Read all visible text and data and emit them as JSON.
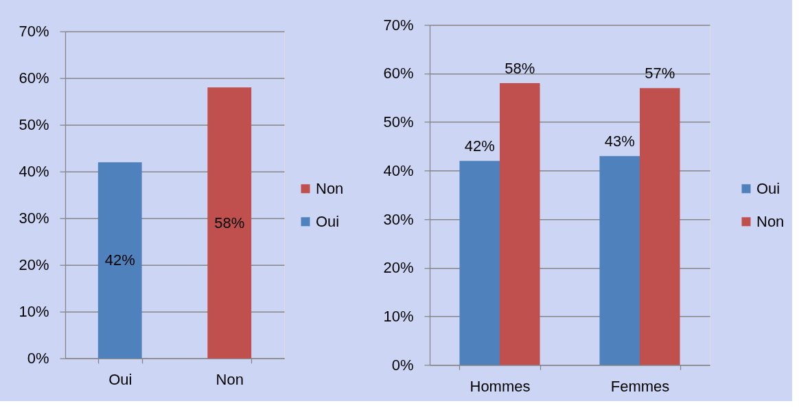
{
  "chart_data": [
    {
      "type": "bar",
      "stacked": true,
      "categories": [
        "Oui",
        "Non"
      ],
      "series": [
        {
          "name": "Oui",
          "color": "#4f81bd",
          "values": [
            42,
            null
          ],
          "value_labels": [
            "42%",
            null
          ]
        },
        {
          "name": "Non",
          "color": "#c0504d",
          "values": [
            null,
            58
          ],
          "value_labels": [
            null,
            "58%"
          ]
        }
      ],
      "ylim": [
        0,
        70
      ],
      "yticks": [
        {
          "value": 0,
          "label": "0%"
        },
        {
          "value": 10,
          "label": "10%"
        },
        {
          "value": 20,
          "label": "20%"
        },
        {
          "value": 30,
          "label": "30%"
        },
        {
          "value": 40,
          "label": "40%"
        },
        {
          "value": 50,
          "label": "50%"
        },
        {
          "value": 60,
          "label": "60%"
        },
        {
          "value": 70,
          "label": "70%"
        }
      ],
      "grid": "y",
      "legend": "right"
    },
    {
      "type": "bar",
      "categories": [
        "Hommes",
        "Femmes"
      ],
      "series": [
        {
          "name": "Oui",
          "color": "#4f81bd",
          "values": [
            42,
            43
          ],
          "value_labels": [
            "42%",
            "43%"
          ]
        },
        {
          "name": "Non",
          "color": "#c0504d",
          "values": [
            58,
            57
          ],
          "value_labels": [
            "58%",
            "57%"
          ]
        }
      ],
      "ylim": [
        0,
        70
      ],
      "yticks": [
        {
          "value": 0,
          "label": "0%"
        },
        {
          "value": 10,
          "label": "10%"
        },
        {
          "value": 20,
          "label": "20%"
        },
        {
          "value": 30,
          "label": "30%"
        },
        {
          "value": 40,
          "label": "40%"
        },
        {
          "value": 50,
          "label": "50%"
        },
        {
          "value": 60,
          "label": "60%"
        },
        {
          "value": 70,
          "label": "70%"
        }
      ],
      "grid": "y",
      "legend": "right"
    }
  ]
}
